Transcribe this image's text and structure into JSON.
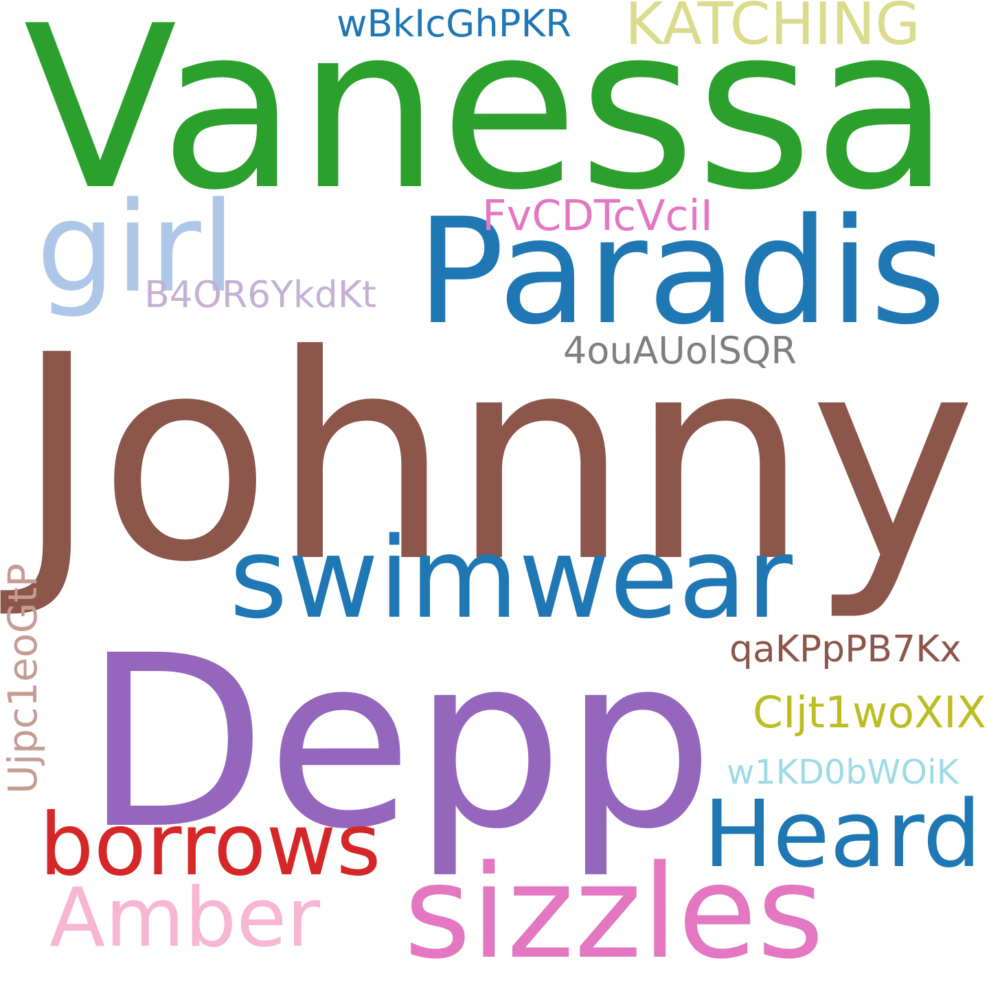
{
  "word_cloud": {
    "background": "#ffffff",
    "words": [
      {
        "key": "vanessa",
        "text": "Vanessa",
        "color": "#2ca02c",
        "orientation": "horizontal"
      },
      {
        "key": "johnny",
        "text": "Johnny",
        "color": "#8c564b",
        "orientation": "horizontal"
      },
      {
        "key": "depp",
        "text": "Depp",
        "color": "#9467bd",
        "orientation": "horizontal"
      },
      {
        "key": "paradis",
        "text": "Paradis",
        "color": "#1f77b4",
        "orientation": "horizontal"
      },
      {
        "key": "swimwear",
        "text": "swimwear",
        "color": "#1f77b4",
        "orientation": "horizontal"
      },
      {
        "key": "sizzles",
        "text": "sizzles",
        "color": "#e377c2",
        "orientation": "horizontal"
      },
      {
        "key": "heard",
        "text": "Heard",
        "color": "#1f77b4",
        "orientation": "horizontal"
      },
      {
        "key": "borrows",
        "text": "borrows",
        "color": "#d62728",
        "orientation": "horizontal"
      },
      {
        "key": "amber",
        "text": "Amber",
        "color": "#f7b6d2",
        "orientation": "horizontal"
      },
      {
        "key": "girl",
        "text": "girl",
        "color": "#aec7e8",
        "orientation": "horizontal"
      },
      {
        "key": "katching",
        "text": "KATCHING",
        "color": "#dbdb8d",
        "orientation": "horizontal"
      },
      {
        "key": "wbkicghpkr",
        "text": "wBkIcGhPKR",
        "color": "#1f77b4",
        "orientation": "horizontal"
      },
      {
        "key": "fvcdtcvcii",
        "text": "FvCDTcVciI",
        "color": "#e377c2",
        "orientation": "horizontal"
      },
      {
        "key": "b4or6ykdkt",
        "text": "B4OR6YkdKt",
        "color": "#c5b0d5",
        "orientation": "horizontal"
      },
      {
        "key": "4ouauolsqr",
        "text": "4ouAUolSQR",
        "color": "#7f7f7f",
        "orientation": "horizontal"
      },
      {
        "key": "qakpppb7kx",
        "text": "qaKPpPB7Kx",
        "color": "#8c564b",
        "orientation": "horizontal"
      },
      {
        "key": "cijt1woxix",
        "text": "CIjt1woXIX",
        "color": "#bcbd22",
        "orientation": "horizontal"
      },
      {
        "key": "w1kd0bwoik",
        "text": "w1KD0bWOiK",
        "color": "#9edae5",
        "orientation": "horizontal"
      },
      {
        "key": "ujpc1eogtp",
        "text": "Ujpc1eoGtP",
        "color": "#c49c94",
        "orientation": "vertical"
      }
    ]
  }
}
